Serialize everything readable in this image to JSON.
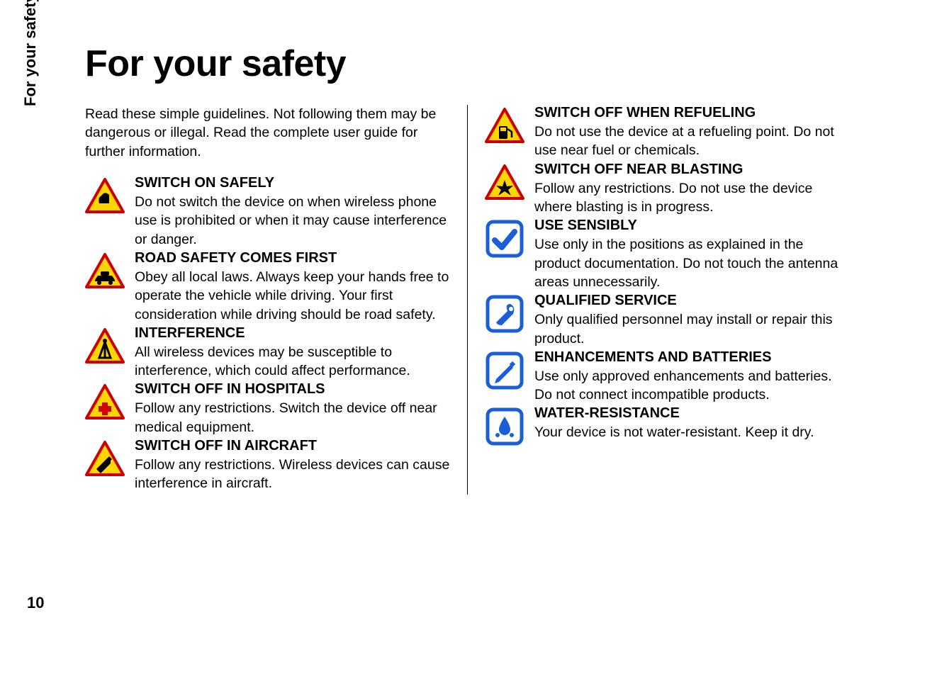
{
  "page": {
    "side_label": "For your safety",
    "page_number": "10",
    "title": "For your safety",
    "intro": "Read these simple guidelines. Not following them may be dangerous or illegal. Read the complete user guide for further information."
  },
  "colors": {
    "warn_fill": "#ffd500",
    "warn_border": "#cc0000",
    "warn_content": "#000000",
    "cross_red": "#d50000",
    "blue_fill": "#ffffff",
    "blue_border": "#1a5fd8"
  },
  "icon_size": 56,
  "left_items": [
    {
      "icon": "hand",
      "title": "SWITCH ON SAFELY",
      "body": "Do not switch the device on when wireless phone use is prohibited or when it may cause interference or danger."
    },
    {
      "icon": "car",
      "title": "ROAD SAFETY COMES FIRST",
      "body": "Obey all local laws. Always keep your hands free to operate the vehicle while driving. Your first consideration while driving should be road safety."
    },
    {
      "icon": "antenna",
      "title": "INTERFERENCE",
      "body": "All wireless devices may be susceptible to interference, which could affect performance."
    },
    {
      "icon": "medical",
      "title": "SWITCH OFF IN HOSPITALS",
      "body": "Follow any restrictions. Switch the device off near medical equipment."
    },
    {
      "icon": "aircraft",
      "title": "SWITCH OFF IN AIRCRAFT",
      "body": "Follow any restrictions. Wireless devices can cause interference in aircraft."
    }
  ],
  "right_items": [
    {
      "icon": "fuel",
      "title": "SWITCH OFF WHEN REFUELING",
      "body": "Do not use the device at a refueling point. Do not use near fuel or chemicals."
    },
    {
      "icon": "blast",
      "title": "SWITCH OFF NEAR BLASTING",
      "body": "Follow any restrictions. Do not use the device where blasting is in progress."
    },
    {
      "icon": "check",
      "title": "USE SENSIBLY",
      "body": "Use only in the positions as explained in the product documentation. Do not touch the antenna areas unnecessarily."
    },
    {
      "icon": "wrench",
      "title": "QUALIFIED SERVICE",
      "body": "Only qualified personnel may install or repair this product."
    },
    {
      "icon": "pen",
      "title": "ENHANCEMENTS AND BATTERIES",
      "body": "Use only approved enhancements and batteries. Do not connect incompatible products."
    },
    {
      "icon": "water",
      "title": "WATER-RESISTANCE",
      "body": "Your device is not water-resistant. Keep it dry."
    }
  ]
}
